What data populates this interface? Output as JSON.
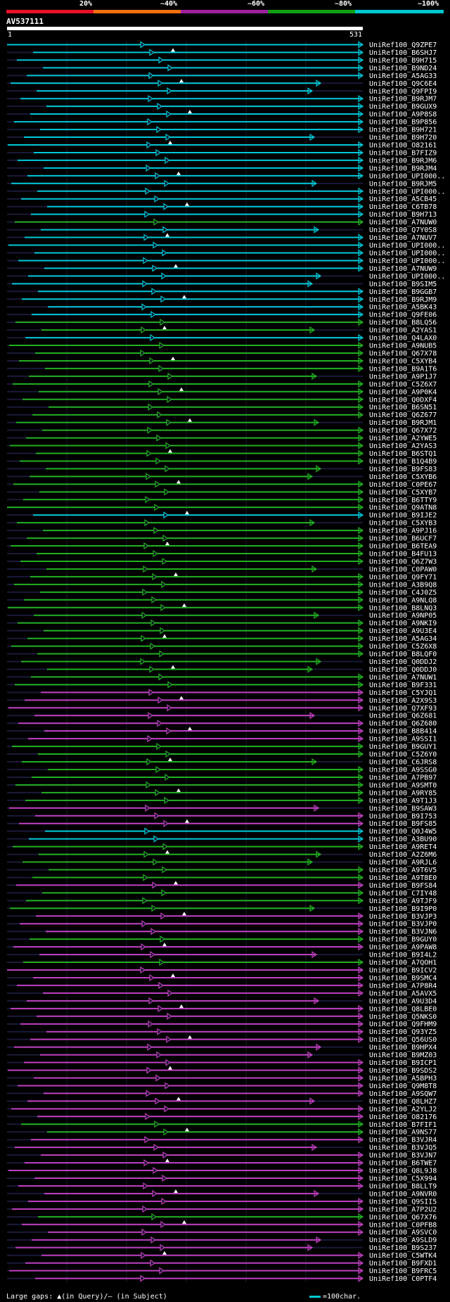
{
  "scale": {
    "labels": [
      "20%",
      "~40%",
      "~60%",
      "~80%",
      "~100%"
    ],
    "colors": [
      "#e8102a",
      "#f07010",
      "#a020a0",
      "#10a010",
      "#00c8d0"
    ]
  },
  "query": {
    "id": "AV537111",
    "start": "1",
    "end": "531"
  },
  "colors": {
    "green": "#22b022",
    "magenta": "#c040c0",
    "cyan": "#00c8d8",
    "dark": "#1a1a3a"
  },
  "footer": {
    "text": "Large gaps: ▲(in Query)/— (in Subject)",
    "legend": "=100char."
  },
  "chart_data": {
    "type": "alignment",
    "title": "AV537111",
    "query_length": 531,
    "hits": [
      {
        "id": "UniRef100_Q9ZPE7",
        "c": "cyan"
      },
      {
        "id": "UniRef100_B6SHJ7",
        "c": "cyan"
      },
      {
        "id": "UniRef100_B9H715",
        "c": "cyan"
      },
      {
        "id": "UniRef100_B9ND24",
        "c": "cyan"
      },
      {
        "id": "UniRef100_A5AG33",
        "c": "cyan"
      },
      {
        "id": "UniRef100_Q9C6E4",
        "c": "cyan"
      },
      {
        "id": "UniRef100_Q9FPI9",
        "c": "cyan"
      },
      {
        "id": "UniRef100_B9RJM7",
        "c": "cyan"
      },
      {
        "id": "UniRef100_B9GUX9",
        "c": "cyan"
      },
      {
        "id": "UniRef100_A9P8S8",
        "c": "cyan"
      },
      {
        "id": "UniRef100_B9P856",
        "c": "cyan"
      },
      {
        "id": "UniRef100_B9H721",
        "c": "cyan"
      },
      {
        "id": "UniRef100_B9H720",
        "c": "cyan"
      },
      {
        "id": "UniRef100_O82161",
        "c": "cyan"
      },
      {
        "id": "UniRef100_B7FIZ9",
        "c": "cyan"
      },
      {
        "id": "UniRef100_B9RJM6",
        "c": "cyan"
      },
      {
        "id": "UniRef100_B9RJM4",
        "c": "cyan"
      },
      {
        "id": "UniRef100_UPI000..",
        "c": "cyan"
      },
      {
        "id": "UniRef100_B9RJM5",
        "c": "cyan"
      },
      {
        "id": "UniRef100_UPI000..",
        "c": "cyan"
      },
      {
        "id": "UniRef100_A5CB45",
        "c": "cyan"
      },
      {
        "id": "UniRef100_C6TB78",
        "c": "cyan"
      },
      {
        "id": "UniRef100_B9H713",
        "c": "cyan"
      },
      {
        "id": "UniRef100_A7NUW0",
        "c": "green"
      },
      {
        "id": "UniRef100_Q7Y0S8",
        "c": "cyan"
      },
      {
        "id": "UniRef100_A7NUV7",
        "c": "cyan"
      },
      {
        "id": "UniRef100_UPI000..",
        "c": "cyan"
      },
      {
        "id": "UniRef100_UPI000..",
        "c": "cyan"
      },
      {
        "id": "UniRef100_UPI000..",
        "c": "cyan"
      },
      {
        "id": "UniRef100_A7NUW9",
        "c": "cyan"
      },
      {
        "id": "UniRef100_UPI000..",
        "c": "cyan"
      },
      {
        "id": "UniRef100_B9SIM5",
        "c": "cyan"
      },
      {
        "id": "UniRef100_B9GGB7",
        "c": "cyan"
      },
      {
        "id": "UniRef100_B9RJM9",
        "c": "cyan"
      },
      {
        "id": "UniRef100_A5BK43",
        "c": "cyan"
      },
      {
        "id": "UniRef100_Q9FE06",
        "c": "cyan"
      },
      {
        "id": "UniRef100_B8LQ56",
        "c": "green"
      },
      {
        "id": "UniRef100_A2YAS1",
        "c": "green"
      },
      {
        "id": "UniRef100_Q4LAX0",
        "c": "cyan"
      },
      {
        "id": "UniRef100_A9NUB5",
        "c": "green"
      },
      {
        "id": "UniRef100_Q67X78",
        "c": "green"
      },
      {
        "id": "UniRef100_C5XYB4",
        "c": "green"
      },
      {
        "id": "UniRef100_B9A1T6",
        "c": "green"
      },
      {
        "id": "UniRef100_A9P1J7",
        "c": "green"
      },
      {
        "id": "UniRef100_C5Z6X7",
        "c": "green"
      },
      {
        "id": "UniRef100_A9P0K4",
        "c": "green"
      },
      {
        "id": "UniRef100_Q0DXF4",
        "c": "green"
      },
      {
        "id": "UniRef100_B6SN51",
        "c": "green"
      },
      {
        "id": "UniRef100_Q6Z677",
        "c": "green"
      },
      {
        "id": "UniRef100_B9RJM1",
        "c": "green"
      },
      {
        "id": "UniRef100_Q67X72",
        "c": "green"
      },
      {
        "id": "UniRef100_A2YWE5",
        "c": "green"
      },
      {
        "id": "UniRef100_A2YAS3",
        "c": "green"
      },
      {
        "id": "UniRef100_B6STQ1",
        "c": "green"
      },
      {
        "id": "UniRef100_B1Q4B9",
        "c": "green"
      },
      {
        "id": "UniRef100_B9FS83",
        "c": "green"
      },
      {
        "id": "UniRef100_C5XYB6",
        "c": "green"
      },
      {
        "id": "UniRef100_C0PE67",
        "c": "green"
      },
      {
        "id": "UniRef100_C5XYB7",
        "c": "green"
      },
      {
        "id": "UniRef100_B6TTY9",
        "c": "green"
      },
      {
        "id": "UniRef100_Q9ATN8",
        "c": "green"
      },
      {
        "id": "UniRef100_B9IJE2",
        "c": "cyan"
      },
      {
        "id": "UniRef100_C5XYB3",
        "c": "green"
      },
      {
        "id": "UniRef100_A9PJ16",
        "c": "green"
      },
      {
        "id": "UniRef100_B6UCF7",
        "c": "green"
      },
      {
        "id": "UniRef100_B6TEA9",
        "c": "green"
      },
      {
        "id": "UniRef100_B4FU13",
        "c": "green"
      },
      {
        "id": "UniRef100_Q6Z7W3",
        "c": "green"
      },
      {
        "id": "UniRef100_C0PAW0",
        "c": "green"
      },
      {
        "id": "UniRef100_Q9FY71",
        "c": "green"
      },
      {
        "id": "UniRef100_A3B9Q8",
        "c": "green"
      },
      {
        "id": "UniRef100_C4J0Z5",
        "c": "green"
      },
      {
        "id": "UniRef100_A9NLQ8",
        "c": "green"
      },
      {
        "id": "UniRef100_B8LNQ3",
        "c": "green"
      },
      {
        "id": "UniRef100_A9NP05",
        "c": "green"
      },
      {
        "id": "UniRef100_A9NKI9",
        "c": "green"
      },
      {
        "id": "UniRef100_A9U3E4",
        "c": "green"
      },
      {
        "id": "UniRef100_A5AG34",
        "c": "green"
      },
      {
        "id": "UniRef100_C5Z6X8",
        "c": "green"
      },
      {
        "id": "UniRef100_B8LQF0",
        "c": "green"
      },
      {
        "id": "UniRef100_Q0DDJ2",
        "c": "green"
      },
      {
        "id": "UniRef100_Q0DDJ0",
        "c": "green"
      },
      {
        "id": "UniRef100_A7NUW1",
        "c": "green"
      },
      {
        "id": "UniRef100_B9F331",
        "c": "green"
      },
      {
        "id": "UniRef100_C5YJQ1",
        "c": "magenta"
      },
      {
        "id": "UniRef100_A2X9S3",
        "c": "magenta"
      },
      {
        "id": "UniRef100_Q7XF93",
        "c": "magenta"
      },
      {
        "id": "UniRef100_Q6Z681",
        "c": "magenta"
      },
      {
        "id": "UniRef100_Q6Z680",
        "c": "magenta"
      },
      {
        "id": "UniRef100_B8B414",
        "c": "magenta"
      },
      {
        "id": "UniRef100_A9SSI1",
        "c": "magenta"
      },
      {
        "id": "UniRef100_B9GUY1",
        "c": "green"
      },
      {
        "id": "UniRef100_C5Z6Y0",
        "c": "green"
      },
      {
        "id": "UniRef100_C6JRS8",
        "c": "green"
      },
      {
        "id": "UniRef100_A9SSG0",
        "c": "green"
      },
      {
        "id": "UniRef100_A7PB97",
        "c": "green"
      },
      {
        "id": "UniRef100_A9SMT0",
        "c": "green"
      },
      {
        "id": "UniRef100_A9RY85",
        "c": "green"
      },
      {
        "id": "UniRef100_A9T1J3",
        "c": "green"
      },
      {
        "id": "UniRef100_B9SAW3",
        "c": "magenta"
      },
      {
        "id": "UniRef100_B9I753",
        "c": "magenta"
      },
      {
        "id": "UniRef100_B9FS85",
        "c": "magenta"
      },
      {
        "id": "UniRef100_Q0J4W5",
        "c": "cyan"
      },
      {
        "id": "UniRef100_A3BU90",
        "c": "cyan"
      },
      {
        "id": "UniRef100_A9RET4",
        "c": "green"
      },
      {
        "id": "UniRef100_A2Z6M6",
        "c": "green"
      },
      {
        "id": "UniRef100_A9RJL6",
        "c": "green"
      },
      {
        "id": "UniRef100_A9T6V5",
        "c": "green"
      },
      {
        "id": "UniRef100_A9T8E0",
        "c": "green"
      },
      {
        "id": "UniRef100_B9FS84",
        "c": "magenta"
      },
      {
        "id": "UniRef100_C7IY48",
        "c": "green"
      },
      {
        "id": "UniRef100_A9TJF9",
        "c": "green"
      },
      {
        "id": "UniRef100_B9I9P0",
        "c": "green"
      },
      {
        "id": "UniRef100_B3VJP3",
        "c": "magenta"
      },
      {
        "id": "UniRef100_B3VJP0",
        "c": "magenta"
      },
      {
        "id": "UniRef100_B3VJN6",
        "c": "magenta"
      },
      {
        "id": "UniRef100_B9GUY0",
        "c": "green"
      },
      {
        "id": "UniRef100_A9PAW8",
        "c": "magenta"
      },
      {
        "id": "UniRef100_B9I4L2",
        "c": "magenta"
      },
      {
        "id": "UniRef100_A7QOH1",
        "c": "green"
      },
      {
        "id": "UniRef100_B9ICV2",
        "c": "magenta"
      },
      {
        "id": "UniRef100_B9SMC4",
        "c": "magenta"
      },
      {
        "id": "UniRef100_A7P8R4",
        "c": "magenta"
      },
      {
        "id": "UniRef100_A5AVX5",
        "c": "magenta"
      },
      {
        "id": "UniRef100_A9U3D4",
        "c": "magenta"
      },
      {
        "id": "UniRef100_Q8LBE0",
        "c": "magenta"
      },
      {
        "id": "UniRef100_Q5NKS0",
        "c": "magenta"
      },
      {
        "id": "UniRef100_Q9FHM9",
        "c": "magenta"
      },
      {
        "id": "UniRef100_Q93YZ5",
        "c": "magenta"
      },
      {
        "id": "UniRef100_Q56US0",
        "c": "magenta"
      },
      {
        "id": "UniRef100_B9HPX4",
        "c": "magenta"
      },
      {
        "id": "UniRef100_B9MZ03",
        "c": "magenta"
      },
      {
        "id": "UniRef100_B9ICP1",
        "c": "magenta"
      },
      {
        "id": "UniRef100_B9SDS2",
        "c": "magenta"
      },
      {
        "id": "UniRef100_A5BPH3",
        "c": "magenta"
      },
      {
        "id": "UniRef100_Q9M8T8",
        "c": "magenta"
      },
      {
        "id": "UniRef100_A9SQW7",
        "c": "magenta"
      },
      {
        "id": "UniRef100_Q8LHZ7",
        "c": "magenta"
      },
      {
        "id": "UniRef100_A2YLJ2",
        "c": "magenta"
      },
      {
        "id": "UniRef100_O82176",
        "c": "magenta"
      },
      {
        "id": "UniRef100_B7FIF1",
        "c": "green"
      },
      {
        "id": "UniRef100_A9NS77",
        "c": "green"
      },
      {
        "id": "UniRef100_B3VJR4",
        "c": "magenta"
      },
      {
        "id": "UniRef100_B3VJQ5",
        "c": "magenta"
      },
      {
        "id": "UniRef100_B3VJN7",
        "c": "magenta"
      },
      {
        "id": "UniRef100_B6TWE7",
        "c": "magenta"
      },
      {
        "id": "UniRef100_Q8L9J8",
        "c": "magenta"
      },
      {
        "id": "UniRef100_C5X994",
        "c": "magenta"
      },
      {
        "id": "UniRef100_B8LLT9",
        "c": "magenta"
      },
      {
        "id": "UniRef100_A9NVR0",
        "c": "magenta"
      },
      {
        "id": "UniRef100_Q9SII5",
        "c": "magenta"
      },
      {
        "id": "UniRef100_A7P2U2",
        "c": "magenta"
      },
      {
        "id": "UniRef100_Q67X76",
        "c": "green"
      },
      {
        "id": "UniRef100_C0PFB8",
        "c": "magenta"
      },
      {
        "id": "UniRef100_A9SVC0",
        "c": "magenta"
      },
      {
        "id": "UniRef100_A9SLD9",
        "c": "magenta"
      },
      {
        "id": "UniRef100_B9S237",
        "c": "magenta"
      },
      {
        "id": "UniRef100_C5WTK4",
        "c": "magenta"
      },
      {
        "id": "UniRef100_B9FXD1",
        "c": "magenta"
      },
      {
        "id": "UniRef100_B9FRC5",
        "c": "magenta"
      },
      {
        "id": "UniRef100_C0PTF4",
        "c": "magenta"
      }
    ]
  }
}
